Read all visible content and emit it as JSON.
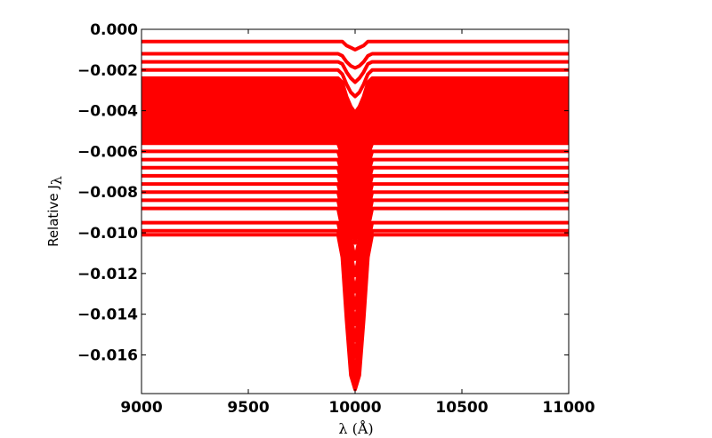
{
  "chart_data": {
    "type": "line",
    "title": "",
    "xlabel": "λ (Å)",
    "ylabel": "Relative J",
    "ylabel_subscript": "λ",
    "xlim": [
      9000,
      11000
    ],
    "ylim": [
      -0.0179,
      0.0
    ],
    "x_ticks": [
      9000,
      9500,
      10000,
      10500,
      11000
    ],
    "x_tick_labels": [
      "9000",
      "9500",
      "10000",
      "10500",
      "11000"
    ],
    "y_ticks": [
      0.0,
      -0.002,
      -0.004,
      -0.006,
      -0.008,
      -0.01,
      -0.012,
      -0.014,
      -0.016
    ],
    "y_tick_labels": [
      "0.000",
      "−0.002",
      "−0.004",
      "−0.006",
      "−0.008",
      "−0.010",
      "−0.012",
      "−0.014",
      "−0.016"
    ],
    "grid": false,
    "legend": "none",
    "series_color": "#ff0000",
    "x": [
      9000,
      9920,
      9940,
      9960,
      9980,
      10000,
      10020,
      10040,
      10060,
      10080,
      11000
    ],
    "series": [
      {
        "values": [
          -0.0006,
          -0.0006,
          -0.0006,
          -0.0008,
          -0.0009,
          -0.001,
          -0.0009,
          -0.0008,
          -0.0006,
          -0.0006,
          -0.0006
        ]
      },
      {
        "values": [
          -0.0012,
          -0.0012,
          -0.0013,
          -0.0016,
          -0.0018,
          -0.0019,
          -0.0018,
          -0.0016,
          -0.0013,
          -0.0012,
          -0.0012
        ]
      },
      {
        "values": [
          -0.0016,
          -0.0016,
          -0.0017,
          -0.0021,
          -0.0024,
          -0.0026,
          -0.0024,
          -0.0021,
          -0.0017,
          -0.0016,
          -0.0016
        ]
      },
      {
        "values": [
          -0.002,
          -0.002,
          -0.0022,
          -0.0027,
          -0.0031,
          -0.0033,
          -0.0031,
          -0.0027,
          -0.0022,
          -0.002,
          -0.002
        ]
      },
      {
        "values": [
          -0.0024,
          -0.0024,
          -0.0026,
          -0.0033,
          -0.0038,
          -0.0041,
          -0.0038,
          -0.0033,
          -0.0026,
          -0.0024,
          -0.0024
        ]
      },
      {
        "values": [
          -0.0028,
          -0.0028,
          -0.0031,
          -0.0039,
          -0.0045,
          -0.0049,
          -0.0045,
          -0.0039,
          -0.0031,
          -0.0028,
          -0.0028
        ]
      },
      {
        "values": [
          -0.0032,
          -0.0032,
          -0.0035,
          -0.0045,
          -0.0053,
          -0.0057,
          -0.0053,
          -0.0045,
          -0.0035,
          -0.0032,
          -0.0032
        ]
      },
      {
        "values": [
          -0.0036,
          -0.0036,
          -0.004,
          -0.0051,
          -0.006,
          -0.0065,
          -0.006,
          -0.0051,
          -0.004,
          -0.0036,
          -0.0036
        ]
      },
      {
        "values": [
          -0.004,
          -0.004,
          -0.0044,
          -0.0057,
          -0.0067,
          -0.0073,
          -0.0067,
          -0.0057,
          -0.0044,
          -0.004,
          -0.004
        ]
      },
      {
        "values": [
          -0.0044,
          -0.0044,
          -0.0049,
          -0.0063,
          -0.0074,
          -0.0081,
          -0.0074,
          -0.0063,
          -0.0049,
          -0.0044,
          -0.0044
        ]
      },
      {
        "values": [
          -0.0048,
          -0.0048,
          -0.0053,
          -0.0069,
          -0.0081,
          -0.0089,
          -0.0081,
          -0.0069,
          -0.0053,
          -0.0048,
          -0.0048
        ]
      },
      {
        "values": [
          -0.0052,
          -0.0052,
          -0.0058,
          -0.0075,
          -0.0088,
          -0.0097,
          -0.0088,
          -0.0075,
          -0.0058,
          -0.0052,
          -0.0052
        ]
      },
      {
        "values": [
          -0.0056,
          -0.0056,
          -0.0062,
          -0.0081,
          -0.0095,
          -0.0105,
          -0.0095,
          -0.0081,
          -0.0062,
          -0.0056,
          -0.0056
        ]
      },
      {
        "values": [
          -0.006,
          -0.006,
          -0.0067,
          -0.0087,
          -0.0103,
          -0.0113,
          -0.0103,
          -0.0087,
          -0.0067,
          -0.006,
          -0.006
        ]
      },
      {
        "values": [
          -0.0064,
          -0.0064,
          -0.0071,
          -0.0093,
          -0.011,
          -0.0121,
          -0.011,
          -0.0093,
          -0.0071,
          -0.0064,
          -0.0064
        ]
      },
      {
        "values": [
          -0.0068,
          -0.0068,
          -0.0076,
          -0.0099,
          -0.0117,
          -0.0129,
          -0.0117,
          -0.0099,
          -0.0076,
          -0.0068,
          -0.0068
        ]
      },
      {
        "values": [
          -0.0072,
          -0.0072,
          -0.008,
          -0.0105,
          -0.0124,
          -0.0137,
          -0.0124,
          -0.0105,
          -0.008,
          -0.0072,
          -0.0072
        ]
      },
      {
        "values": [
          -0.0076,
          -0.0076,
          -0.0085,
          -0.0111,
          -0.0131,
          -0.0145,
          -0.0131,
          -0.0111,
          -0.0085,
          -0.0076,
          -0.0076
        ]
      },
      {
        "values": [
          -0.008,
          -0.008,
          -0.0089,
          -0.0117,
          -0.0139,
          -0.0153,
          -0.0139,
          -0.0117,
          -0.0089,
          -0.008,
          -0.008
        ]
      },
      {
        "values": [
          -0.0084,
          -0.0084,
          -0.0094,
          -0.0123,
          -0.0146,
          -0.0161,
          -0.0146,
          -0.0123,
          -0.0094,
          -0.0084,
          -0.0084
        ]
      },
      {
        "values": [
          -0.0088,
          -0.0088,
          -0.0098,
          -0.0129,
          -0.0153,
          -0.0169,
          -0.0153,
          -0.0129,
          -0.0098,
          -0.0088,
          -0.0088
        ]
      },
      {
        "values": [
          -0.0095,
          -0.0095,
          -0.0105,
          -0.0135,
          -0.016,
          -0.0172,
          -0.016,
          -0.0135,
          -0.0105,
          -0.0095,
          -0.0095
        ]
      },
      {
        "values": [
          -0.0099,
          -0.0099,
          -0.011,
          -0.014,
          -0.0166,
          -0.0175,
          -0.0166,
          -0.014,
          -0.011,
          -0.0099,
          -0.0099
        ]
      },
      {
        "values": [
          -0.0101,
          -0.0101,
          -0.0112,
          -0.0143,
          -0.017,
          -0.0177,
          -0.017,
          -0.0143,
          -0.0112,
          -0.0101,
          -0.0101
        ]
      }
    ]
  }
}
